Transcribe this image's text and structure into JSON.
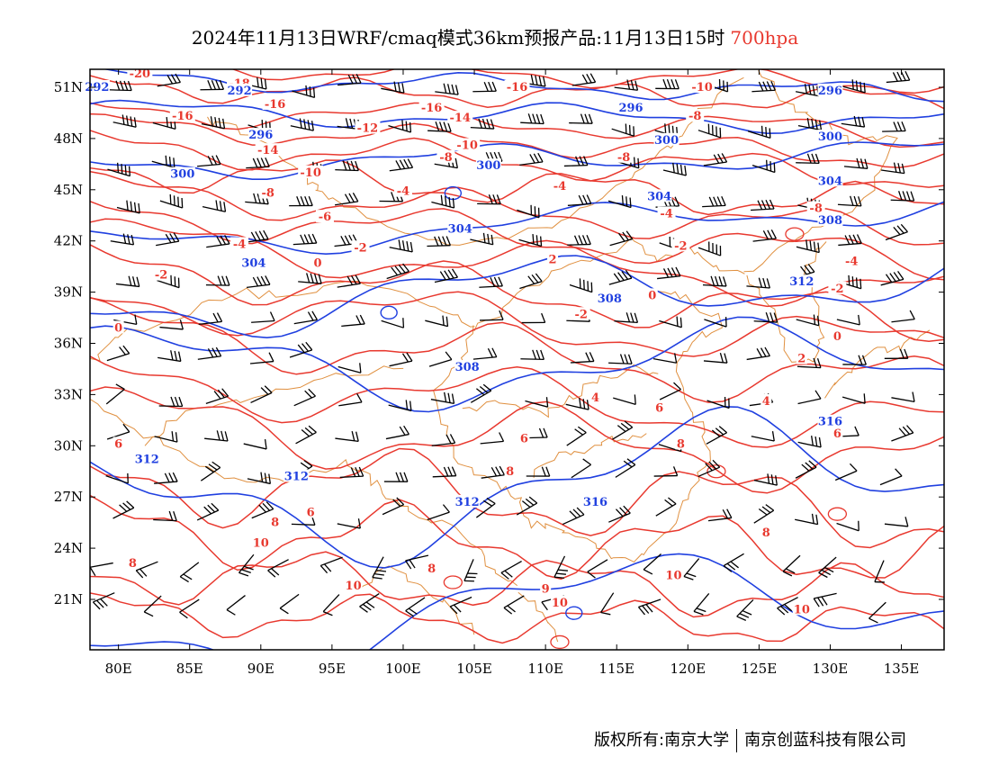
{
  "header": {
    "title": "2024年11月13日WRF/cmaq模式36km预报产品:11月13日15时",
    "level": "700hpa"
  },
  "axes": {
    "lat_labels": [
      "51N",
      "48N",
      "45N",
      "42N",
      "39N",
      "36N",
      "33N",
      "30N",
      "27N",
      "24N",
      "21N"
    ],
    "lat_values": [
      51,
      48,
      45,
      42,
      39,
      36,
      33,
      30,
      27,
      24,
      21
    ],
    "lon_labels": [
      "80E",
      "85E",
      "90E",
      "95E",
      "100E",
      "105E",
      "110E",
      "115E",
      "120E",
      "125E",
      "130E",
      "135E"
    ],
    "lon_values": [
      80,
      85,
      90,
      95,
      100,
      105,
      110,
      115,
      120,
      125,
      130,
      135
    ],
    "lon_range": [
      78,
      138
    ],
    "lat_range": [
      18,
      52
    ]
  },
  "colors": {
    "temperature": "#e8392f",
    "geopotential": "#2040e0",
    "borders": "#e09040",
    "wind_barbs": "#000000"
  },
  "contour_labels": {
    "temperature": [
      {
        "text": "-20",
        "lon": 81.5,
        "lat": 51.8
      },
      {
        "text": "-18",
        "lon": 88.5,
        "lat": 51.2
      },
      {
        "text": "-16",
        "lon": 91,
        "lat": 50.0
      },
      {
        "text": "-16",
        "lon": 84.5,
        "lat": 49.3
      },
      {
        "text": "-16",
        "lon": 102,
        "lat": 49.8
      },
      {
        "text": "-16",
        "lon": 108,
        "lat": 51.0
      },
      {
        "text": "-14",
        "lon": 104,
        "lat": 49.2
      },
      {
        "text": "-14",
        "lon": 90.5,
        "lat": 47.3
      },
      {
        "text": "-12",
        "lon": 97.5,
        "lat": 48.6
      },
      {
        "text": "-10",
        "lon": 104.5,
        "lat": 47.6
      },
      {
        "text": "-10",
        "lon": 121,
        "lat": 51.0
      },
      {
        "text": "-8",
        "lon": 120.5,
        "lat": 49.3
      },
      {
        "text": "-8",
        "lon": 103,
        "lat": 46.9
      },
      {
        "text": "-8",
        "lon": 115.5,
        "lat": 46.9
      },
      {
        "text": "-10",
        "lon": 93.5,
        "lat": 46.0
      },
      {
        "text": "-8",
        "lon": 90.5,
        "lat": 44.8
      },
      {
        "text": "-6",
        "lon": 94.5,
        "lat": 43.4
      },
      {
        "text": "-4",
        "lon": 100,
        "lat": 44.9
      },
      {
        "text": "-4",
        "lon": 111,
        "lat": 45.2
      },
      {
        "text": "-4",
        "lon": 88.5,
        "lat": 41.8
      },
      {
        "text": "-4",
        "lon": 118.5,
        "lat": 43.6
      },
      {
        "text": "-2",
        "lon": 97,
        "lat": 41.6
      },
      {
        "text": "-2",
        "lon": 83,
        "lat": 40.0
      },
      {
        "text": "-2",
        "lon": 119.5,
        "lat": 41.7
      },
      {
        "text": "-2",
        "lon": 130.5,
        "lat": 39.2
      },
      {
        "text": "2",
        "lon": 110.5,
        "lat": 40.9
      },
      {
        "text": "0",
        "lon": 94,
        "lat": 40.7
      },
      {
        "text": "-4",
        "lon": 131.5,
        "lat": 40.8
      },
      {
        "text": "-8",
        "lon": 129,
        "lat": 43.9
      },
      {
        "text": "-2",
        "lon": 112.5,
        "lat": 37.7
      },
      {
        "text": "0",
        "lon": 117.5,
        "lat": 38.8
      },
      {
        "text": "0",
        "lon": 80,
        "lat": 36.9
      },
      {
        "text": "0",
        "lon": 130.5,
        "lat": 36.4
      },
      {
        "text": "2",
        "lon": 128,
        "lat": 35.1
      },
      {
        "text": "4",
        "lon": 113.5,
        "lat": 32.8
      },
      {
        "text": "4",
        "lon": 125.5,
        "lat": 32.6
      },
      {
        "text": "6",
        "lon": 118,
        "lat": 32.2
      },
      {
        "text": "6",
        "lon": 108.5,
        "lat": 30.4
      },
      {
        "text": "6",
        "lon": 80,
        "lat": 30.1
      },
      {
        "text": "6",
        "lon": 130.5,
        "lat": 30.7
      },
      {
        "text": "8",
        "lon": 119.5,
        "lat": 30.1
      },
      {
        "text": "8",
        "lon": 107.5,
        "lat": 28.5
      },
      {
        "text": "6",
        "lon": 93.5,
        "lat": 26.1
      },
      {
        "text": "8",
        "lon": 91,
        "lat": 25.5
      },
      {
        "text": "10",
        "lon": 90,
        "lat": 24.3
      },
      {
        "text": "8",
        "lon": 125.5,
        "lat": 24.9
      },
      {
        "text": "8",
        "lon": 102,
        "lat": 22.8
      },
      {
        "text": "8",
        "lon": 81,
        "lat": 23.1
      },
      {
        "text": "10",
        "lon": 96.5,
        "lat": 21.8
      },
      {
        "text": "10",
        "lon": 119,
        "lat": 22.4
      },
      {
        "text": "10",
        "lon": 111,
        "lat": 20.8
      },
      {
        "text": "10",
        "lon": 128,
        "lat": 20.4
      },
      {
        "text": "9",
        "lon": 110,
        "lat": 21.6
      }
    ],
    "geopotential": [
      {
        "text": "292",
        "lon": 78.5,
        "lat": 51.0
      },
      {
        "text": "292",
        "lon": 88.5,
        "lat": 50.8
      },
      {
        "text": "296",
        "lon": 90,
        "lat": 48.2
      },
      {
        "text": "296",
        "lon": 116,
        "lat": 49.8
      },
      {
        "text": "296",
        "lon": 130,
        "lat": 50.8
      },
      {
        "text": "300",
        "lon": 84.5,
        "lat": 45.9
      },
      {
        "text": "300",
        "lon": 106,
        "lat": 46.4
      },
      {
        "text": "300",
        "lon": 118.5,
        "lat": 47.9
      },
      {
        "text": "300",
        "lon": 130,
        "lat": 48.1
      },
      {
        "text": "304",
        "lon": 118,
        "lat": 44.6
      },
      {
        "text": "304",
        "lon": 130,
        "lat": 45.5
      },
      {
        "text": "304",
        "lon": 104,
        "lat": 42.7
      },
      {
        "text": "304",
        "lon": 89.5,
        "lat": 40.7
      },
      {
        "text": "308",
        "lon": 130,
        "lat": 43.2
      },
      {
        "text": "308",
        "lon": 114.5,
        "lat": 38.6
      },
      {
        "text": "308",
        "lon": 104.5,
        "lat": 34.6
      },
      {
        "text": "312",
        "lon": 128,
        "lat": 39.6
      },
      {
        "text": "312",
        "lon": 92.5,
        "lat": 28.2
      },
      {
        "text": "312",
        "lon": 82,
        "lat": 29.2
      },
      {
        "text": "312",
        "lon": 104.5,
        "lat": 26.7
      },
      {
        "text": "316",
        "lon": 130,
        "lat": 31.4
      },
      {
        "text": "316",
        "lon": 113.5,
        "lat": 26.7
      }
    ]
  },
  "footer": {
    "left": "版权所有:南京大学",
    "right": "南京创蓝科技有限公司"
  }
}
